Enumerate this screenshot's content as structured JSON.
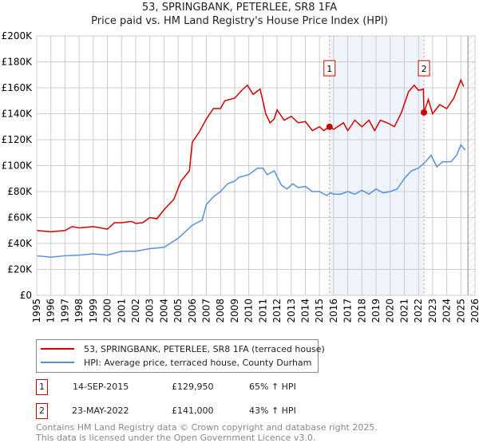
{
  "title_line1": "53, SPRINGBANK, PETERLEE, SR8 1FA",
  "title_line2": "Price paid vs. HM Land Registry's House Price Index (HPI)",
  "legend": [
    {
      "label": "53, SPRINGBANK, PETERLEE, SR8 1FA (terraced house)",
      "color": "#cc0000"
    },
    {
      "label": "HPI: Average price, terraced house, County Durham",
      "color": "#5b8fd4"
    }
  ],
  "sales": [
    {
      "num": "1",
      "date": "14-SEP-2015",
      "price": "£129,950",
      "hpi": "65% ↑ HPI"
    },
    {
      "num": "2",
      "date": "23-MAY-2022",
      "price": "£141,000",
      "hpi": "43% ↑ HPI"
    }
  ],
  "footer_line1": "Contains HM Land Registry data © Crown copyright and database right 2025.",
  "footer_line2": "This data is licensed under the Open Government Licence v3.0.",
  "chart_data": {
    "type": "line",
    "title": "53, SPRINGBANK, PETERLEE, SR8 1FA — Price paid vs. HM Land Registry's House Price Index (HPI)",
    "xlim": [
      1995,
      2026
    ],
    "ylim": [
      0,
      200000
    ],
    "xticks": [
      "1995",
      "1996",
      "1997",
      "1998",
      "1999",
      "2000",
      "2001",
      "2002",
      "2003",
      "2004",
      "2005",
      "2006",
      "2007",
      "2008",
      "2009",
      "2010",
      "2011",
      "2012",
      "2013",
      "2014",
      "2015",
      "2016",
      "2017",
      "2018",
      "2019",
      "2020",
      "2021",
      "2022",
      "2023",
      "2024",
      "2025",
      "2026"
    ],
    "yticks": [
      {
        "v": 0,
        "label": "£0"
      },
      {
        "v": 20000,
        "label": "£20K"
      },
      {
        "v": 40000,
        "label": "£40K"
      },
      {
        "v": 60000,
        "label": "£60K"
      },
      {
        "v": 80000,
        "label": "£80K"
      },
      {
        "v": 100000,
        "label": "£100K"
      },
      {
        "v": 120000,
        "label": "£120K"
      },
      {
        "v": 140000,
        "label": "£140K"
      },
      {
        "v": 160000,
        "label": "£160K"
      },
      {
        "v": 180000,
        "label": "£180K"
      },
      {
        "v": 200000,
        "label": "£200K"
      }
    ],
    "grid": true,
    "shaded_period": [
      2015.71,
      2022.39
    ],
    "forecast_from": 2025.5,
    "markers": [
      {
        "label": "1",
        "x": 2015.71,
        "y": 129950
      },
      {
        "label": "2",
        "x": 2022.39,
        "y": 141000
      }
    ],
    "series": [
      {
        "name": "53, SPRINGBANK, PETERLEE, SR8 1FA (terraced house)",
        "color": "#cc0000",
        "points": [
          [
            1995,
            50
          ],
          [
            1996,
            49
          ],
          [
            1997,
            50
          ],
          [
            1997.5,
            53
          ],
          [
            1998,
            52
          ],
          [
            1999,
            53
          ],
          [
            2000,
            51
          ],
          [
            2000.5,
            56
          ],
          [
            2001,
            56
          ],
          [
            2001.7,
            57
          ],
          [
            2002,
            55.5
          ],
          [
            2002.5,
            56
          ],
          [
            2003,
            60
          ],
          [
            2003.5,
            59
          ],
          [
            2004,
            66
          ],
          [
            2004.7,
            74
          ],
          [
            2005.2,
            88
          ],
          [
            2005.8,
            96
          ],
          [
            2006,
            118
          ],
          [
            2006.5,
            126
          ],
          [
            2007,
            136
          ],
          [
            2007.5,
            144
          ],
          [
            2008,
            144
          ],
          [
            2008.3,
            150
          ],
          [
            2009,
            152
          ],
          [
            2009.5,
            158
          ],
          [
            2009.9,
            162
          ],
          [
            2010.3,
            155
          ],
          [
            2010.8,
            159
          ],
          [
            2011.2,
            140
          ],
          [
            2011.5,
            133
          ],
          [
            2011.8,
            136
          ],
          [
            2012,
            143
          ],
          [
            2012.5,
            135
          ],
          [
            2013,
            138
          ],
          [
            2013.5,
            133
          ],
          [
            2014,
            134
          ],
          [
            2014.5,
            127
          ],
          [
            2015,
            130
          ],
          [
            2015.3,
            127
          ],
          [
            2015.71,
            130
          ],
          [
            2016,
            128
          ],
          [
            2016.7,
            133
          ],
          [
            2017,
            127
          ],
          [
            2017.5,
            135
          ],
          [
            2018,
            130
          ],
          [
            2018.5,
            135
          ],
          [
            2018.9,
            127
          ],
          [
            2019.3,
            135
          ],
          [
            2019.8,
            133
          ],
          [
            2020.3,
            130
          ],
          [
            2020.8,
            141
          ],
          [
            2021.3,
            157
          ],
          [
            2021.7,
            162
          ],
          [
            2022,
            158
          ],
          [
            2022.35,
            159
          ],
          [
            2022.39,
            141
          ],
          [
            2022.7,
            151
          ],
          [
            2023,
            140
          ],
          [
            2023.5,
            147
          ],
          [
            2024,
            144
          ],
          [
            2024.5,
            152
          ],
          [
            2025,
            166
          ],
          [
            2025.2,
            161
          ]
        ]
      },
      {
        "name": "HPI: Average price, terraced house, County Durham",
        "color": "#5b8fd4",
        "points": [
          [
            1995,
            30.5
          ],
          [
            1996,
            29.5
          ],
          [
            1997,
            30.5
          ],
          [
            1998,
            31
          ],
          [
            1999,
            32
          ],
          [
            2000,
            31
          ],
          [
            2001,
            34
          ],
          [
            2002,
            34
          ],
          [
            2003,
            36
          ],
          [
            2004,
            37
          ],
          [
            2005,
            44
          ],
          [
            2006,
            54
          ],
          [
            2006.7,
            58
          ],
          [
            2007,
            70
          ],
          [
            2007.5,
            76
          ],
          [
            2008,
            80
          ],
          [
            2008.5,
            86
          ],
          [
            2009,
            88
          ],
          [
            2009.3,
            91
          ],
          [
            2010,
            93
          ],
          [
            2010.6,
            98
          ],
          [
            2011,
            98
          ],
          [
            2011.3,
            93
          ],
          [
            2011.8,
            96
          ],
          [
            2012.3,
            85
          ],
          [
            2012.7,
            82
          ],
          [
            2013.1,
            86
          ],
          [
            2013.5,
            83
          ],
          [
            2014,
            84
          ],
          [
            2014.5,
            80
          ],
          [
            2015,
            80
          ],
          [
            2015.5,
            77
          ],
          [
            2015.8,
            79
          ],
          [
            2016,
            78
          ],
          [
            2016.5,
            78
          ],
          [
            2017,
            80
          ],
          [
            2017.5,
            78
          ],
          [
            2018,
            81
          ],
          [
            2018.5,
            78
          ],
          [
            2019,
            82
          ],
          [
            2019.5,
            79
          ],
          [
            2020,
            80
          ],
          [
            2020.5,
            82
          ],
          [
            2021,
            90
          ],
          [
            2021.5,
            96
          ],
          [
            2022,
            98
          ],
          [
            2022.5,
            103
          ],
          [
            2022.9,
            108
          ],
          [
            2023.3,
            99
          ],
          [
            2023.7,
            103
          ],
          [
            2024.3,
            103
          ],
          [
            2024.7,
            108
          ],
          [
            2025,
            116
          ],
          [
            2025.3,
            112
          ]
        ]
      }
    ],
    "y_units_of_points": "thousands GBP"
  }
}
